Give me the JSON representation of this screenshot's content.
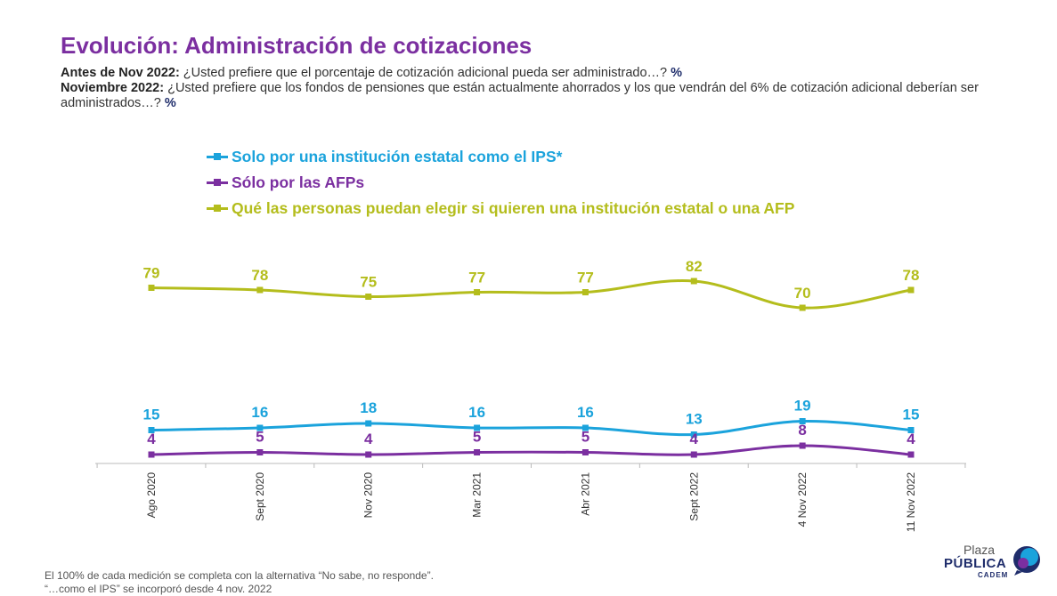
{
  "title": "Evolución: Administración de cotizaciones",
  "subtitle": {
    "line1_label": "Antes de Nov 2022:",
    "line1_text": " ¿Usted prefiere que el porcentaje de cotización adicional pueda ser administrado…? ",
    "line1_unit": "%",
    "line2_label": "Noviembre 2022:",
    "line2_text": " ¿Usted prefiere que los fondos de pensiones que están actualmente ahorrados y los que vendrán del 6% de cotización adicional deberían ser administrados…? ",
    "line2_unit": "%"
  },
  "colors": {
    "title": "#7b2fa0",
    "ips": "#1ba3dc",
    "afp": "#7b2fa0",
    "elegir": "#b4bd1c",
    "axis": "#bbbbbb"
  },
  "chart_data": {
    "type": "line",
    "categories": [
      "Ago 2020",
      "Sept 2020",
      "Nov 2020",
      "Mar 2021",
      "Abr 2021",
      "Sept 2022",
      "4 Nov 2022",
      "11 Nov 2022"
    ],
    "series": [
      {
        "key": "ips",
        "name": "Solo por una institución estatal como el IPS*",
        "values": [
          15,
          16,
          18,
          16,
          16,
          13,
          19,
          15
        ]
      },
      {
        "key": "afp",
        "name": "Sólo por las AFPs",
        "values": [
          4,
          5,
          4,
          5,
          5,
          4,
          8,
          4
        ]
      },
      {
        "key": "elegir",
        "name": "Qué las personas puedan elegir si quieren una institución estatal o una AFP",
        "values": [
          79,
          78,
          75,
          77,
          77,
          82,
          70,
          78
        ]
      }
    ],
    "ylim": [
      0,
      100
    ],
    "grid": false,
    "legend_position": "top-left",
    "data_labels": true
  },
  "footnotes": [
    "El 100% de cada medición se completa con la alternativa “No sabe, no responde”.",
    "“…como el IPS” se incorporó desde 4 nov. 2022"
  ],
  "logo": {
    "plaza": "Plaza",
    "publica": "PÚBLICA",
    "cadem": "CADEM"
  }
}
